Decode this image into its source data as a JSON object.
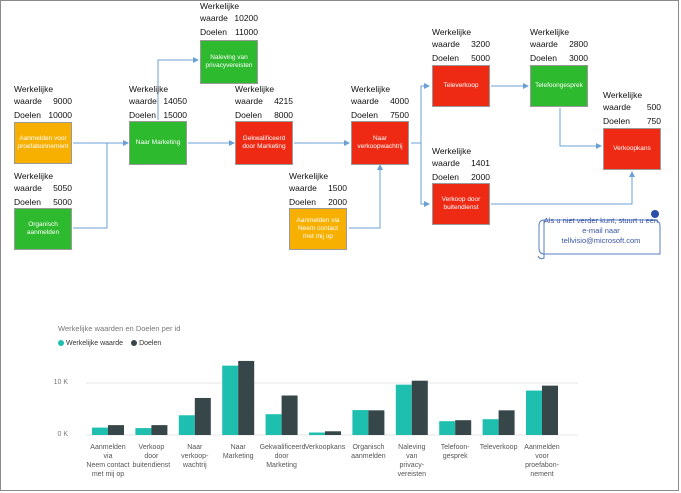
{
  "labels": {
    "werkelijke": "Werkelijke",
    "waarde": "waarde",
    "doelen": "Doelen"
  },
  "nodes": [
    {
      "id": "naleving",
      "text": "Naleving van privacyvereisten",
      "werkelijk": "10200",
      "doel": "11000",
      "color": "green"
    },
    {
      "id": "aanmelden_proef",
      "text": "Aanmelden voor proefabonnement",
      "werkelijk": "9000",
      "doel": "10000",
      "color": "orange"
    },
    {
      "id": "naar_marketing",
      "text": "Naar Marketing",
      "werkelijk": "14050",
      "doel": "15000",
      "color": "green"
    },
    {
      "id": "gekwalificeerd",
      "text": "Gekwalificeerd door Marketing",
      "werkelijk": "4215",
      "doel": "8000",
      "color": "red"
    },
    {
      "id": "naar_verkoop",
      "text": "Naar verkoopwachtrij",
      "werkelijk": "4000",
      "doel": "7500",
      "color": "red"
    },
    {
      "id": "televerkoop",
      "text": "Televerkoop",
      "werkelijk": "3200",
      "doel": "5000",
      "color": "red"
    },
    {
      "id": "telefoongesprek",
      "text": "Telefoongesprek",
      "werkelijk": "2800",
      "doel": "3000",
      "color": "green"
    },
    {
      "id": "verkoopkans",
      "text": "Verkoopkans",
      "werkelijk": "500",
      "doel": "750",
      "color": "red"
    },
    {
      "id": "organisch",
      "text": "Organisch aanmelden",
      "werkelijk": "5050",
      "doel": "5000",
      "color": "green"
    },
    {
      "id": "neem_contact",
      "text": "Aanmelden via Neem contact met mij op",
      "werkelijk": "1500",
      "doel": "2000",
      "color": "orange"
    },
    {
      "id": "buitendienst",
      "text": "Verkoop door buitendienst",
      "werkelijk": "1401",
      "doel": "2000",
      "color": "red"
    }
  ],
  "callout": "Als u niet verder kunt, stuurt u een e-mail naar tellvisio@microsoft.com",
  "chart_data": {
    "type": "bar",
    "title": "Werkelijke waarden en Doelen per id",
    "categories": [
      "Aanmelden via Neem contact met mij op",
      "Verkoop door buitendienst",
      "Naar verkoop-wachtrij",
      "Naar Marketing",
      "Gekwalificeerd door Marketing",
      "Verkoopkans",
      "Organisch aanmelden",
      "Naleving van privacy-vereisten",
      "Telefoon-gesprek",
      "Televerkoop",
      "Aanmelden voor proefabon-nement"
    ],
    "category_lines": [
      [
        "Aanmelden via",
        "Neem contact",
        "met mij op"
      ],
      [
        "Verkoop",
        "door",
        "buitendienst"
      ],
      [
        "Naar",
        "verkoop-",
        "wachtrij"
      ],
      [
        "Naar",
        "Marketing"
      ],
      [
        "Gekwalificeerd",
        "door",
        "Marketing"
      ],
      [
        "Verkoopkans"
      ],
      [
        "Organisch",
        "aanmelden"
      ],
      [
        "Naleving",
        "van",
        "privacy-",
        "vereisten"
      ],
      [
        "Telefoon-",
        "gesprek"
      ],
      [
        "Televerkoop"
      ],
      [
        "Aanmelden",
        "voor",
        "proefabon-",
        "nement"
      ]
    ],
    "series": [
      {
        "name": "Werkelijke waarde",
        "color": "#1fbfb0",
        "values": [
          1500,
          1401,
          4000,
          14050,
          4215,
          500,
          5050,
          10200,
          2800,
          3200,
          9000
        ]
      },
      {
        "name": "Doelen",
        "color": "#374649",
        "values": [
          2000,
          2000,
          7500,
          15000,
          8000,
          750,
          5000,
          11000,
          3000,
          5000,
          10000
        ]
      }
    ],
    "yticks": [
      "0 K",
      "10 K"
    ],
    "ylim": [
      0,
      16000
    ],
    "legend": "top-left"
  }
}
